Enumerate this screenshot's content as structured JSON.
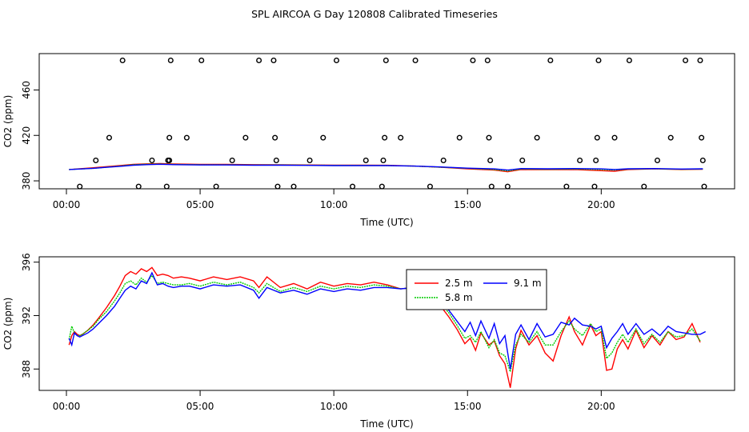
{
  "title": "SPL AIRCOA G  Day 120808  Calibrated Timeseries",
  "colors": {
    "series1": "#ff0000",
    "series2": "#00cc00",
    "series3": "#0000ff",
    "axis": "#000000",
    "marker": "#000000"
  },
  "chart_data": [
    {
      "type": "line",
      "xlabel": "Time (UTC)",
      "ylabel": "CO2 (ppm)",
      "xlim": [
        0,
        24
      ],
      "ylim": [
        373,
        492
      ],
      "xticks": [
        0,
        5,
        10,
        15,
        20
      ],
      "xtick_labels": [
        "00:00",
        "05:00",
        "10:00",
        "15:00",
        "20:00"
      ],
      "yticks": [
        380,
        420,
        460
      ],
      "ytick_labels": [
        "380",
        "420",
        "460"
      ],
      "grid": false,
      "legend": "none",
      "scatter": {
        "marker": "open-circle",
        "points": [
          [
            0.5,
            375
          ],
          [
            1.1,
            398
          ],
          [
            1.6,
            418
          ],
          [
            2.1,
            486
          ],
          [
            2.7,
            375
          ],
          [
            3.2,
            398
          ],
          [
            3.75,
            375
          ],
          [
            3.8,
            398
          ],
          [
            3.85,
            398
          ],
          [
            3.85,
            418
          ],
          [
            3.9,
            486
          ],
          [
            4.5,
            418
          ],
          [
            5.05,
            486
          ],
          [
            5.6,
            375
          ],
          [
            6.2,
            398
          ],
          [
            6.7,
            418
          ],
          [
            7.2,
            486
          ],
          [
            7.75,
            486
          ],
          [
            7.8,
            418
          ],
          [
            7.85,
            398
          ],
          [
            7.9,
            375
          ],
          [
            8.5,
            375
          ],
          [
            9.1,
            398
          ],
          [
            9.6,
            418
          ],
          [
            10.1,
            486
          ],
          [
            10.7,
            375
          ],
          [
            11.2,
            398
          ],
          [
            11.8,
            375
          ],
          [
            11.85,
            398
          ],
          [
            11.9,
            418
          ],
          [
            11.95,
            486
          ],
          [
            12.5,
            418
          ],
          [
            13.05,
            486
          ],
          [
            13.6,
            375
          ],
          [
            14.1,
            398
          ],
          [
            14.7,
            418
          ],
          [
            15.2,
            486
          ],
          [
            15.75,
            486
          ],
          [
            15.8,
            418
          ],
          [
            15.85,
            398
          ],
          [
            15.9,
            375
          ],
          [
            16.5,
            375
          ],
          [
            17.05,
            398
          ],
          [
            17.6,
            418
          ],
          [
            18.1,
            486
          ],
          [
            18.7,
            375
          ],
          [
            19.2,
            398
          ],
          [
            19.75,
            375
          ],
          [
            19.8,
            398
          ],
          [
            19.85,
            418
          ],
          [
            19.9,
            486
          ],
          [
            20.5,
            418
          ],
          [
            21.05,
            486
          ],
          [
            21.6,
            375
          ],
          [
            22.1,
            398
          ],
          [
            22.6,
            418
          ],
          [
            23.15,
            486
          ],
          [
            23.7,
            486
          ],
          [
            23.75,
            418
          ],
          [
            23.8,
            398
          ],
          [
            23.85,
            375
          ]
        ]
      },
      "series": [
        {
          "x": [
            0.1,
            1,
            2,
            2.5,
            3,
            3.5,
            4,
            5,
            6,
            7,
            8,
            9,
            10,
            11,
            12,
            13,
            14,
            15,
            16,
            16.5,
            17,
            18,
            19,
            20,
            20.5,
            21,
            22,
            23,
            23.8
          ],
          "y": [
            390,
            391.5,
            393.5,
            394.5,
            395,
            395.2,
            394.8,
            394.5,
            394.5,
            394.3,
            394.2,
            394,
            393.8,
            393.8,
            393.7,
            393,
            392,
            390.5,
            389.5,
            388,
            390,
            389.8,
            390,
            389,
            388.5,
            390,
            390.5,
            390,
            390.2
          ]
        },
        {
          "x": [
            0.1,
            1,
            2,
            2.5,
            3,
            3.5,
            4,
            5,
            6,
            7,
            8,
            9,
            10,
            11,
            12,
            13,
            14,
            15,
            16,
            16.5,
            17,
            18,
            19,
            20,
            20.5,
            21,
            22,
            23,
            23.8
          ],
          "y": [
            390,
            391,
            393,
            394.2,
            394.6,
            394.8,
            394.5,
            394.2,
            394.2,
            394,
            394,
            393.8,
            393.6,
            393.6,
            393.5,
            393,
            392,
            391,
            390,
            388.8,
            390.4,
            390.2,
            390.4,
            390,
            389.5,
            390.4,
            390.6,
            390.2,
            390.4
          ]
        },
        {
          "x": [
            0.1,
            1,
            2,
            2.5,
            3,
            3.5,
            4,
            5,
            6,
            7,
            8,
            9,
            10,
            11,
            12,
            13,
            14,
            15,
            16,
            16.5,
            17,
            18,
            19,
            20,
            20.5,
            21,
            22,
            23,
            23.8
          ],
          "y": [
            390,
            391,
            392.8,
            393.8,
            394.3,
            394.6,
            394.3,
            394,
            394,
            393.8,
            393.8,
            393.6,
            393.4,
            393.4,
            393.4,
            393,
            392.2,
            391.2,
            390.5,
            389.5,
            390.8,
            390.6,
            390.8,
            390.5,
            390,
            390.6,
            390.8,
            390.4,
            390.6
          ]
        }
      ]
    },
    {
      "type": "line",
      "xlabel": "Time (UTC)",
      "ylabel": "CO2 (ppm)",
      "xlim": [
        0,
        24
      ],
      "ylim": [
        386.4,
        396.4
      ],
      "xticks": [
        0,
        5,
        10,
        15,
        20
      ],
      "xtick_labels": [
        "00:00",
        "05:00",
        "10:00",
        "15:00",
        "20:00"
      ],
      "yticks": [
        388,
        392,
        396
      ],
      "ytick_labels": [
        "388",
        "392",
        "396"
      ],
      "grid": false,
      "legend_position": "upper-right-inside",
      "series": [
        {
          "name": "2.5 m",
          "x": [
            0.1,
            0.2,
            0.3,
            0.4,
            0.5,
            0.6,
            0.8,
            1.0,
            1.2,
            1.5,
            1.8,
            2.0,
            2.2,
            2.4,
            2.6,
            2.8,
            3.0,
            3.2,
            3.4,
            3.6,
            3.8,
            4.0,
            4.3,
            4.6,
            5.0,
            5.5,
            6.0,
            6.5,
            7.0,
            7.2,
            7.5,
            8.0,
            8.5,
            9.0,
            9.5,
            10.0,
            10.5,
            11.0,
            11.5,
            12.0,
            12.5,
            13.0,
            13.5,
            14.0,
            14.3,
            14.6,
            14.9,
            15.1,
            15.3,
            15.5,
            15.8,
            16.0,
            16.2,
            16.4,
            16.6,
            16.8,
            17.0,
            17.3,
            17.6,
            17.9,
            18.2,
            18.5,
            18.8,
            19.0,
            19.3,
            19.6,
            19.8,
            20.0,
            20.2,
            20.4,
            20.6,
            20.8,
            21.0,
            21.3,
            21.6,
            21.9,
            22.2,
            22.5,
            22.8,
            23.1,
            23.4,
            23.7
          ],
          "y": [
            389.8,
            390.5,
            390.8,
            390.6,
            390.5,
            390.6,
            390.9,
            391.3,
            391.8,
            392.6,
            393.5,
            394.2,
            395.0,
            395.3,
            395.1,
            395.5,
            395.3,
            395.6,
            395.0,
            395.1,
            395.0,
            394.8,
            394.9,
            394.8,
            394.6,
            394.9,
            394.7,
            394.9,
            394.6,
            394.1,
            394.9,
            394.1,
            394.4,
            394.0,
            394.5,
            394.2,
            394.4,
            394.3,
            394.5,
            394.3,
            394.0,
            394.1,
            393.6,
            392.7,
            391.9,
            391.0,
            389.9,
            390.3,
            389.4,
            390.7,
            389.8,
            390.1,
            389.0,
            388.4,
            386.6,
            389.5,
            390.9,
            389.8,
            390.5,
            389.2,
            388.6,
            390.5,
            391.9,
            390.8,
            389.8,
            391.3,
            390.5,
            390.8,
            387.9,
            388.0,
            389.5,
            390.2,
            389.5,
            390.9,
            389.6,
            390.5,
            389.8,
            390.8,
            390.2,
            390.4,
            391.4,
            390.0
          ]
        },
        {
          "name": "5.8 m",
          "x": [
            0.1,
            0.2,
            0.3,
            0.4,
            0.5,
            0.6,
            0.8,
            1.0,
            1.2,
            1.5,
            1.8,
            2.0,
            2.2,
            2.4,
            2.6,
            2.8,
            3.0,
            3.2,
            3.4,
            3.6,
            3.8,
            4.0,
            4.3,
            4.6,
            5.0,
            5.5,
            6.0,
            6.5,
            7.0,
            7.2,
            7.5,
            8.0,
            8.5,
            9.0,
            9.5,
            10.0,
            10.5,
            11.0,
            11.5,
            12.0,
            12.5,
            13.0,
            13.5,
            14.0,
            14.3,
            14.6,
            14.9,
            15.1,
            15.3,
            15.5,
            15.8,
            16.0,
            16.2,
            16.4,
            16.6,
            16.8,
            17.0,
            17.3,
            17.6,
            17.9,
            18.2,
            18.5,
            18.8,
            19.0,
            19.3,
            19.6,
            19.8,
            20.0,
            20.2,
            20.4,
            20.6,
            20.8,
            21.0,
            21.3,
            21.6,
            21.9,
            22.2,
            22.5,
            22.8,
            23.1,
            23.4,
            23.7
          ],
          "y": [
            390.2,
            391.2,
            390.7,
            390.5,
            390.5,
            390.6,
            390.9,
            391.2,
            391.7,
            392.3,
            393.1,
            393.7,
            394.4,
            394.6,
            394.3,
            394.8,
            394.5,
            395.0,
            394.4,
            394.5,
            394.4,
            394.3,
            394.3,
            394.4,
            394.2,
            394.5,
            394.3,
            394.5,
            394.1,
            393.7,
            394.4,
            393.8,
            394.1,
            393.8,
            394.2,
            394.0,
            394.2,
            394.1,
            394.3,
            394.2,
            394.0,
            394.1,
            393.7,
            392.9,
            392.2,
            391.3,
            390.3,
            390.5,
            390.0,
            390.8,
            389.6,
            390.2,
            389.2,
            389.0,
            387.8,
            389.8,
            390.6,
            390.0,
            390.8,
            389.8,
            389.8,
            390.8,
            391.6,
            391.0,
            390.5,
            391.4,
            390.8,
            391.0,
            388.8,
            389.2,
            390.0,
            390.6,
            390.0,
            391.0,
            389.9,
            390.6,
            390.0,
            390.8,
            390.4,
            390.5,
            391.0,
            390.1
          ]
        },
        {
          "name": "9.1 m",
          "x": [
            0.1,
            0.2,
            0.3,
            0.4,
            0.5,
            0.6,
            0.8,
            1.0,
            1.2,
            1.5,
            1.8,
            2.0,
            2.2,
            2.4,
            2.6,
            2.8,
            3.0,
            3.2,
            3.4,
            3.6,
            3.8,
            4.0,
            4.3,
            4.6,
            5.0,
            5.5,
            6.0,
            6.5,
            7.0,
            7.2,
            7.5,
            8.0,
            8.5,
            9.0,
            9.5,
            10.0,
            10.5,
            11.0,
            11.5,
            12.0,
            12.5,
            13.0,
            13.5,
            14.0,
            14.3,
            14.6,
            14.9,
            15.1,
            15.3,
            15.5,
            15.8,
            16.0,
            16.2,
            16.4,
            16.6,
            16.8,
            17.0,
            17.3,
            17.6,
            17.9,
            18.2,
            18.5,
            18.8,
            19.0,
            19.3,
            19.6,
            19.8,
            20.0,
            20.2,
            20.4,
            20.6,
            20.8,
            21.0,
            21.3,
            21.6,
            21.9,
            22.2,
            22.5,
            22.8,
            23.1,
            23.4,
            23.7,
            23.9
          ],
          "y": [
            390.3,
            389.8,
            390.7,
            390.5,
            390.4,
            390.5,
            390.7,
            391.0,
            391.4,
            392.0,
            392.7,
            393.3,
            393.9,
            394.2,
            394.0,
            394.6,
            394.4,
            395.2,
            394.3,
            394.4,
            394.2,
            394.1,
            394.2,
            394.2,
            394.0,
            394.3,
            394.2,
            394.3,
            393.9,
            393.3,
            394.1,
            393.7,
            393.9,
            393.6,
            394.0,
            393.8,
            394.0,
            393.9,
            394.1,
            394.1,
            394.0,
            394.1,
            393.8,
            393.1,
            392.4,
            391.6,
            390.8,
            391.5,
            390.5,
            391.6,
            390.3,
            391.4,
            389.9,
            390.5,
            388.0,
            390.6,
            391.3,
            390.2,
            391.4,
            390.4,
            390.6,
            391.5,
            391.3,
            391.8,
            391.3,
            391.2,
            391.0,
            391.2,
            389.6,
            390.3,
            390.8,
            391.4,
            390.6,
            391.4,
            390.6,
            391.0,
            390.5,
            391.2,
            390.8,
            390.7,
            390.6,
            390.6,
            390.8
          ]
        }
      ]
    }
  ]
}
